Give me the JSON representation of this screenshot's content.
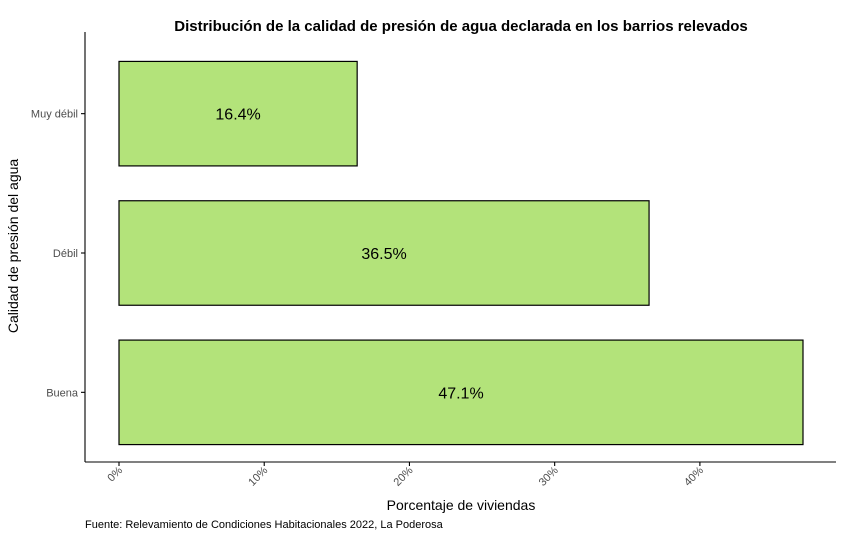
{
  "colors": {
    "bar_fill": "#b3e37a",
    "bar_stroke": "#000000",
    "axis": "#000000",
    "tick_text": "#4d4d4d"
  },
  "chart_data": {
    "type": "bar",
    "orientation": "horizontal",
    "title": "Distribución de la calidad de presión de agua declarada en los barrios relevados",
    "xlabel": "Porcentaje de viviendas",
    "ylabel": "Calidad de presión del agua",
    "caption": "Fuente: Relevamiento de Condiciones Habitacionales 2022, La Poderosa",
    "categories": [
      "Muy débil",
      "Débil",
      "Buena"
    ],
    "values": [
      16.4,
      36.5,
      47.1
    ],
    "value_labels": [
      "16.4%",
      "36.5%",
      "47.1%"
    ],
    "xlim": [
      0,
      47.1
    ],
    "x_ticks": [
      0,
      10,
      20,
      30,
      40
    ],
    "x_tick_labels": [
      "0%",
      "10%",
      "20%",
      "30%",
      "40%"
    ],
    "grid": false,
    "legend": "none"
  }
}
